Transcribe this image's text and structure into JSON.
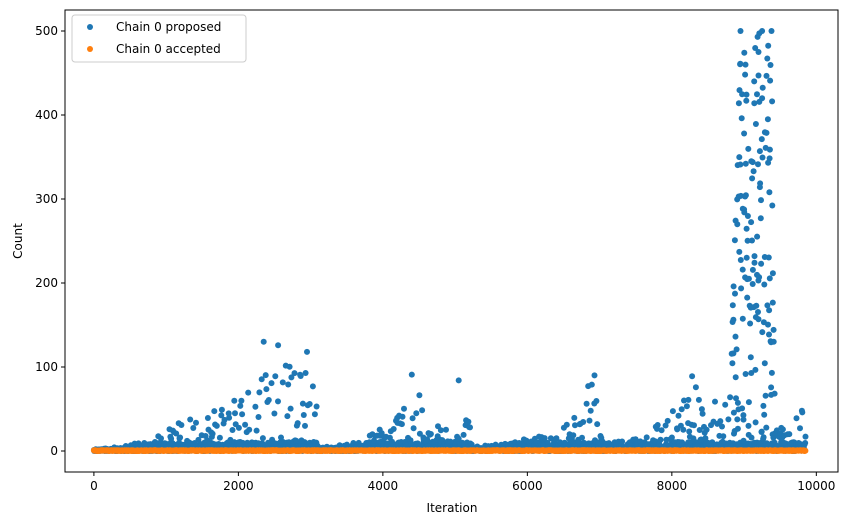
{
  "chart_data": {
    "type": "scatter",
    "title": "",
    "xlabel": "Iteration",
    "ylabel": "Count",
    "xlim": [
      -400,
      10300
    ],
    "ylim": [
      -25,
      525
    ],
    "xticks": [
      0,
      2000,
      4000,
      6000,
      8000,
      10000
    ],
    "yticks": [
      0,
      100,
      200,
      300,
      400,
      500
    ],
    "grid": false,
    "legend_position": "upper-left",
    "series": [
      {
        "name": "Chain 0 proposed",
        "color": "#1f77b4",
        "marker": "dot",
        "envelope": [
          [
            0,
            3
          ],
          [
            300,
            5
          ],
          [
            700,
            12
          ],
          [
            1000,
            25
          ],
          [
            1300,
            40
          ],
          [
            1600,
            55
          ],
          [
            1800,
            75
          ],
          [
            2100,
            80
          ],
          [
            2350,
            130
          ],
          [
            2550,
            125
          ],
          [
            2800,
            90
          ],
          [
            2950,
            118
          ],
          [
            3080,
            60
          ],
          [
            3100,
            5
          ],
          [
            3600,
            10
          ],
          [
            3800,
            20
          ],
          [
            4100,
            40
          ],
          [
            4400,
            90
          ],
          [
            4550,
            55
          ],
          [
            4600,
            28
          ],
          [
            5000,
            40
          ],
          [
            5050,
            84
          ],
          [
            5200,
            45
          ],
          [
            5250,
            5
          ],
          [
            5800,
            10
          ],
          [
            6200,
            20
          ],
          [
            6600,
            35
          ],
          [
            6900,
            90
          ],
          [
            7000,
            40
          ],
          [
            7050,
            8
          ],
          [
            7400,
            15
          ],
          [
            7800,
            40
          ],
          [
            8100,
            55
          ],
          [
            8300,
            88
          ],
          [
            8500,
            60
          ],
          [
            8800,
            80
          ],
          [
            8950,
            500
          ],
          [
            9050,
            480
          ],
          [
            9200,
            500
          ],
          [
            9380,
            500
          ],
          [
            9420,
            40
          ],
          [
            9600,
            25
          ],
          [
            9800,
            48
          ],
          [
            9850,
            20
          ]
        ]
      },
      {
        "name": "Chain 0 accepted",
        "color": "#ff7f0e",
        "marker": "dot",
        "values_range": [
          0,
          1
        ]
      }
    ],
    "notable_points": [
      {
        "x": 2350,
        "y": 130
      },
      {
        "x": 2550,
        "y": 126
      },
      {
        "x": 2950,
        "y": 118
      },
      {
        "x": 4400,
        "y": 91
      },
      {
        "x": 5050,
        "y": 84
      },
      {
        "x": 6930,
        "y": 90
      },
      {
        "x": 8280,
        "y": 89
      },
      {
        "x": 8950,
        "y": 500
      },
      {
        "x": 9250,
        "y": 500
      },
      {
        "x": 9380,
        "y": 500
      },
      {
        "x": 9020,
        "y": 460
      },
      {
        "x": 9200,
        "y": 475
      },
      {
        "x": 9360,
        "y": 441
      },
      {
        "x": 9030,
        "y": 417
      },
      {
        "x": 9140,
        "y": 440
      },
      {
        "x": 9250,
        "y": 420
      },
      {
        "x": 9330,
        "y": 395
      },
      {
        "x": 9000,
        "y": 378
      },
      {
        "x": 9100,
        "y": 345
      },
      {
        "x": 9350,
        "y": 308
      },
      {
        "x": 9800,
        "y": 48
      }
    ]
  }
}
